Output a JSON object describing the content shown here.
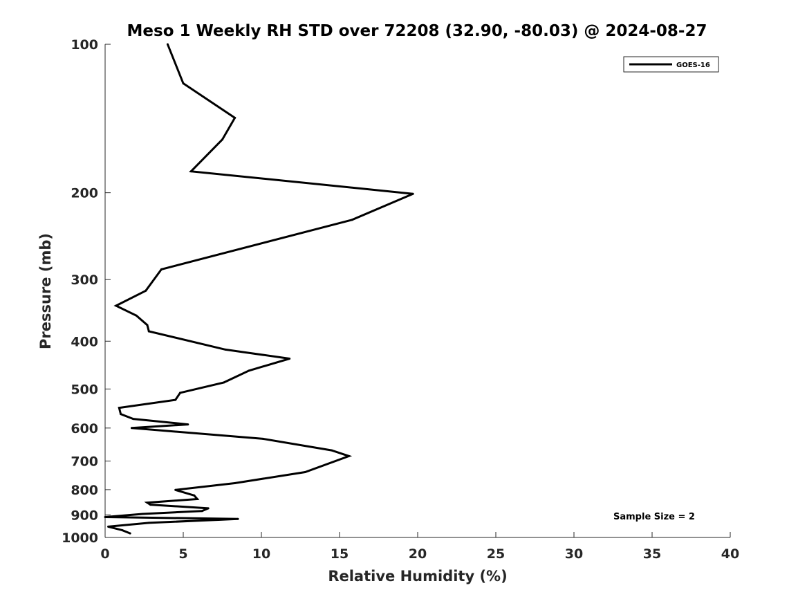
{
  "chart_data": {
    "type": "line",
    "title": "Meso 1 Weekly RH STD over 72208 (32.90, -80.03) @ 2024-08-27",
    "xlabel": "Relative Humidity (%)",
    "ylabel": "Pressure (mb)",
    "xlim": [
      0,
      40
    ],
    "ylim": [
      1000,
      100
    ],
    "y_scale": "log",
    "grid": false,
    "legend_position": "top-right",
    "x_ticks": [
      0,
      5,
      10,
      15,
      20,
      25,
      30,
      35,
      40
    ],
    "x_tick_labels": [
      "0",
      "5",
      "10",
      "15",
      "20",
      "25",
      "30",
      "35",
      "40"
    ],
    "y_ticks": [
      100,
      200,
      300,
      400,
      500,
      600,
      700,
      800,
      900,
      1000
    ],
    "y_tick_labels": [
      "100",
      "200",
      "300",
      "400",
      "500",
      "600",
      "700",
      "800",
      "900",
      "1000"
    ],
    "annotation": "Sample Size = 2",
    "series": [
      {
        "name": "GOES-16",
        "color": "#000000",
        "x": [
          4.0,
          5.0,
          8.3,
          7.5,
          5.5,
          19.7,
          15.8,
          3.6,
          2.6,
          0.7,
          2.0,
          2.7,
          2.8,
          7.7,
          11.8,
          9.2,
          7.6,
          4.8,
          4.5,
          0.9,
          1.0,
          1.8,
          5.3,
          1.7,
          10.1,
          14.5,
          15.6,
          12.8,
          8.3,
          4.5,
          5.7,
          5.9,
          2.7,
          2.9,
          6.6,
          6.2,
          2.4,
          0.0,
          8.5,
          2.8,
          0.2,
          1.1,
          1.6
        ],
        "y": [
          100,
          120,
          141,
          156,
          181,
          201,
          227,
          286,
          316,
          339,
          355,
          371,
          382,
          416,
          434,
          459,
          485,
          509,
          526,
          546,
          562,
          575,
          590,
          600,
          631,
          666,
          684,
          737,
          776,
          801,
          822,
          836,
          850,
          858,
          873,
          884,
          896,
          909,
          917,
          934,
          951,
          967,
          981
        ]
      }
    ]
  }
}
